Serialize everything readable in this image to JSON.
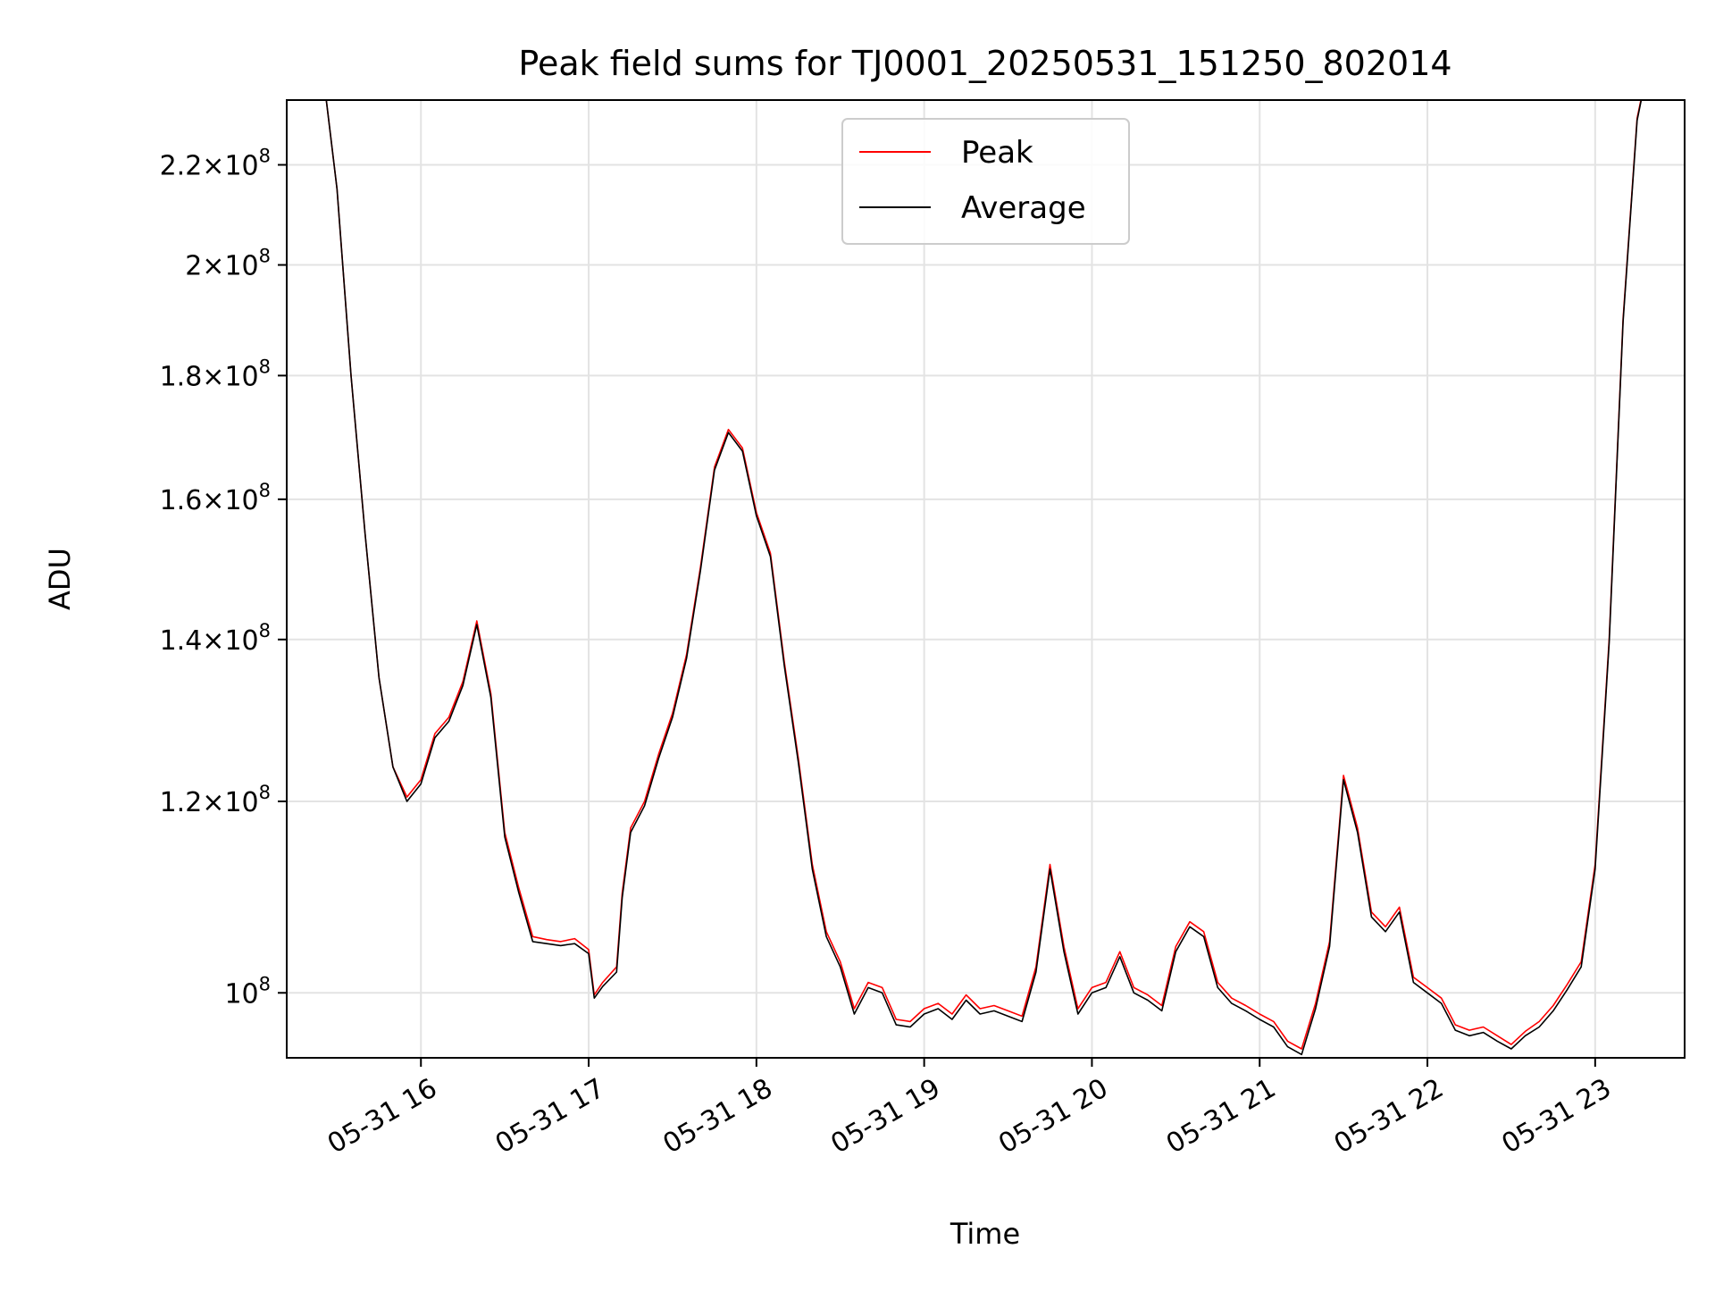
{
  "chart_data": {
    "type": "line",
    "title": "Peak field sums for TJ0001_20250531_151250_802014",
    "xlabel": "Time",
    "ylabel": "ADU",
    "yscale": "log",
    "xlim": [
      "2025-05-31 15:12",
      "2025-05-31 23:32"
    ],
    "ylim": [
      94000000,
      234000000
    ],
    "grid": true,
    "legend_position": "top-center",
    "x_ticks": [
      {
        "value": "2025-05-31 16:00",
        "label": "05-31 16"
      },
      {
        "value": "2025-05-31 17:00",
        "label": "05-31 17"
      },
      {
        "value": "2025-05-31 18:00",
        "label": "05-31 18"
      },
      {
        "value": "2025-05-31 19:00",
        "label": "05-31 19"
      },
      {
        "value": "2025-05-31 20:00",
        "label": "05-31 20"
      },
      {
        "value": "2025-05-31 21:00",
        "label": "05-31 21"
      },
      {
        "value": "2025-05-31 22:00",
        "label": "05-31 22"
      },
      {
        "value": "2025-05-31 23:00",
        "label": "05-31 23"
      }
    ],
    "y_ticks": [
      {
        "value": 100000000,
        "mantissa": "",
        "exponent": "8"
      },
      {
        "value": 120000000,
        "mantissa": "1.2",
        "exponent": "8"
      },
      {
        "value": 140000000,
        "mantissa": "1.4",
        "exponent": "8"
      },
      {
        "value": 160000000,
        "mantissa": "1.6",
        "exponent": "8"
      },
      {
        "value": 180000000,
        "mantissa": "1.8",
        "exponent": "8"
      },
      {
        "value": 200000000,
        "mantissa": "2",
        "exponent": "8"
      },
      {
        "value": 220000000,
        "mantissa": "2.2",
        "exponent": "8"
      }
    ],
    "series": [
      {
        "name": "Peak",
        "color": "#ff0000",
        "points": [
          [
            "2025-05-31 15:25",
            240000000
          ],
          [
            "2025-05-31 15:30",
            215000000
          ],
          [
            "2025-05-31 15:35",
            180000000
          ],
          [
            "2025-05-31 15:40",
            155000000
          ],
          [
            "2025-05-31 15:45",
            135000000
          ],
          [
            "2025-05-31 15:50",
            124000000
          ],
          [
            "2025-05-31 15:55",
            120500000
          ],
          [
            "2025-05-31 16:00",
            122500000
          ],
          [
            "2025-05-31 16:05",
            128000000
          ],
          [
            "2025-05-31 16:10",
            130000000
          ],
          [
            "2025-05-31 16:15",
            134500000
          ],
          [
            "2025-05-31 16:20",
            142500000
          ],
          [
            "2025-05-31 16:25",
            133000000
          ],
          [
            "2025-05-31 16:30",
            116500000
          ],
          [
            "2025-05-31 16:35",
            110500000
          ],
          [
            "2025-05-31 16:40",
            105500000
          ],
          [
            "2025-05-31 16:45",
            105200000
          ],
          [
            "2025-05-31 16:50",
            105000000
          ],
          [
            "2025-05-31 16:55",
            105300000
          ],
          [
            "2025-05-31 17:00",
            104200000
          ],
          [
            "2025-05-31 17:02",
            99800000
          ],
          [
            "2025-05-31 17:05",
            101000000
          ],
          [
            "2025-05-31 17:10",
            102500000
          ],
          [
            "2025-05-31 17:12",
            110000000
          ],
          [
            "2025-05-31 17:15",
            117000000
          ],
          [
            "2025-05-31 17:20",
            120000000
          ],
          [
            "2025-05-31 17:25",
            125500000
          ],
          [
            "2025-05-31 17:30",
            130500000
          ],
          [
            "2025-05-31 17:35",
            138000000
          ],
          [
            "2025-05-31 17:40",
            150000000
          ],
          [
            "2025-05-31 17:45",
            165000000
          ],
          [
            "2025-05-31 17:50",
            171000000
          ],
          [
            "2025-05-31 17:55",
            168000000
          ],
          [
            "2025-05-31 18:00",
            158000000
          ],
          [
            "2025-05-31 18:05",
            152000000
          ],
          [
            "2025-05-31 18:10",
            137000000
          ],
          [
            "2025-05-31 18:15",
            125000000
          ],
          [
            "2025-05-31 18:20",
            113000000
          ],
          [
            "2025-05-31 18:25",
            106000000
          ],
          [
            "2025-05-31 18:30",
            103000000
          ],
          [
            "2025-05-31 18:35",
            98500000
          ],
          [
            "2025-05-31 18:40",
            101000000
          ],
          [
            "2025-05-31 18:45",
            100500000
          ],
          [
            "2025-05-31 18:50",
            97500000
          ],
          [
            "2025-05-31 18:55",
            97300000
          ],
          [
            "2025-05-31 19:00",
            98500000
          ],
          [
            "2025-05-31 19:05",
            99000000
          ],
          [
            "2025-05-31 19:10",
            98000000
          ],
          [
            "2025-05-31 19:15",
            99800000
          ],
          [
            "2025-05-31 19:20",
            98500000
          ],
          [
            "2025-05-31 19:25",
            98800000
          ],
          [
            "2025-05-31 19:30",
            98300000
          ],
          [
            "2025-05-31 19:35",
            97800000
          ],
          [
            "2025-05-31 19:40",
            102500000
          ],
          [
            "2025-05-31 19:45",
            113000000
          ],
          [
            "2025-05-31 19:50",
            104500000
          ],
          [
            "2025-05-31 19:55",
            98500000
          ],
          [
            "2025-05-31 20:00",
            100500000
          ],
          [
            "2025-05-31 20:05",
            101000000
          ],
          [
            "2025-05-31 20:10",
            104000000
          ],
          [
            "2025-05-31 20:15",
            100500000
          ],
          [
            "2025-05-31 20:20",
            99800000
          ],
          [
            "2025-05-31 20:25",
            98800000
          ],
          [
            "2025-05-31 20:30",
            104500000
          ],
          [
            "2025-05-31 20:35",
            107000000
          ],
          [
            "2025-05-31 20:40",
            106000000
          ],
          [
            "2025-05-31 20:45",
            101000000
          ],
          [
            "2025-05-31 20:50",
            99500000
          ],
          [
            "2025-05-31 20:55",
            98800000
          ],
          [
            "2025-05-31 21:00",
            98000000
          ],
          [
            "2025-05-31 21:05",
            97300000
          ],
          [
            "2025-05-31 21:10",
            95500000
          ],
          [
            "2025-05-31 21:15",
            94800000
          ],
          [
            "2025-05-31 21:20",
            99000000
          ],
          [
            "2025-05-31 21:25",
            105000000
          ],
          [
            "2025-05-31 21:30",
            123000000
          ],
          [
            "2025-05-31 21:35",
            117000000
          ],
          [
            "2025-05-31 21:40",
            108000000
          ],
          [
            "2025-05-31 21:45",
            106500000
          ],
          [
            "2025-05-31 21:50",
            108500000
          ],
          [
            "2025-05-31 21:55",
            101500000
          ],
          [
            "2025-05-31 22:00",
            100500000
          ],
          [
            "2025-05-31 22:05",
            99500000
          ],
          [
            "2025-05-31 22:10",
            97000000
          ],
          [
            "2025-05-31 22:15",
            96500000
          ],
          [
            "2025-05-31 22:20",
            96800000
          ],
          [
            "2025-05-31 22:25",
            96000000
          ],
          [
            "2025-05-31 22:30",
            95200000
          ],
          [
            "2025-05-31 22:35",
            96400000
          ],
          [
            "2025-05-31 22:40",
            97300000
          ],
          [
            "2025-05-31 22:45",
            98800000
          ],
          [
            "2025-05-31 22:50",
            100800000
          ],
          [
            "2025-05-31 22:55",
            103000000
          ],
          [
            "2025-05-31 23:00",
            113000000
          ],
          [
            "2025-05-31 23:05",
            140000000
          ],
          [
            "2025-05-31 23:10",
            190000000
          ],
          [
            "2025-05-31 23:15",
            230000000
          ],
          [
            "2025-05-31 23:20",
            245000000
          ]
        ]
      },
      {
        "name": "Average",
        "color": "#000000",
        "points": [
          [
            "2025-05-31 15:25",
            240000000
          ],
          [
            "2025-05-31 15:30",
            215000000
          ],
          [
            "2025-05-31 15:35",
            180000000
          ],
          [
            "2025-05-31 15:40",
            155000000
          ],
          [
            "2025-05-31 15:45",
            135000000
          ],
          [
            "2025-05-31 15:50",
            124000000
          ],
          [
            "2025-05-31 15:55",
            120000000
          ],
          [
            "2025-05-31 16:00",
            122000000
          ],
          [
            "2025-05-31 16:05",
            127500000
          ],
          [
            "2025-05-31 16:10",
            129500000
          ],
          [
            "2025-05-31 16:15",
            134000000
          ],
          [
            "2025-05-31 16:20",
            142000000
          ],
          [
            "2025-05-31 16:25",
            132500000
          ],
          [
            "2025-05-31 16:30",
            116000000
          ],
          [
            "2025-05-31 16:35",
            110000000
          ],
          [
            "2025-05-31 16:40",
            105000000
          ],
          [
            "2025-05-31 16:45",
            104800000
          ],
          [
            "2025-05-31 16:50",
            104600000
          ],
          [
            "2025-05-31 16:55",
            104800000
          ],
          [
            "2025-05-31 17:00",
            103800000
          ],
          [
            "2025-05-31 17:02",
            99500000
          ],
          [
            "2025-05-31 17:05",
            100600000
          ],
          [
            "2025-05-31 17:10",
            102000000
          ],
          [
            "2025-05-31 17:12",
            109500000
          ],
          [
            "2025-05-31 17:15",
            116500000
          ],
          [
            "2025-05-31 17:20",
            119500000
          ],
          [
            "2025-05-31 17:25",
            125000000
          ],
          [
            "2025-05-31 17:30",
            130000000
          ],
          [
            "2025-05-31 17:35",
            137500000
          ],
          [
            "2025-05-31 17:40",
            149500000
          ],
          [
            "2025-05-31 17:45",
            164500000
          ],
          [
            "2025-05-31 17:50",
            170500000
          ],
          [
            "2025-05-31 17:55",
            167500000
          ],
          [
            "2025-05-31 18:00",
            157500000
          ],
          [
            "2025-05-31 18:05",
            151500000
          ],
          [
            "2025-05-31 18:10",
            136500000
          ],
          [
            "2025-05-31 18:15",
            124500000
          ],
          [
            "2025-05-31 18:20",
            112500000
          ],
          [
            "2025-05-31 18:25",
            105500000
          ],
          [
            "2025-05-31 18:30",
            102500000
          ],
          [
            "2025-05-31 18:35",
            98000000
          ],
          [
            "2025-05-31 18:40",
            100500000
          ],
          [
            "2025-05-31 18:45",
            100000000
          ],
          [
            "2025-05-31 18:50",
            97000000
          ],
          [
            "2025-05-31 18:55",
            96800000
          ],
          [
            "2025-05-31 19:00",
            98000000
          ],
          [
            "2025-05-31 19:05",
            98500000
          ],
          [
            "2025-05-31 19:10",
            97500000
          ],
          [
            "2025-05-31 19:15",
            99300000
          ],
          [
            "2025-05-31 19:20",
            98000000
          ],
          [
            "2025-05-31 19:25",
            98300000
          ],
          [
            "2025-05-31 19:30",
            97800000
          ],
          [
            "2025-05-31 19:35",
            97300000
          ],
          [
            "2025-05-31 19:40",
            102000000
          ],
          [
            "2025-05-31 19:45",
            112500000
          ],
          [
            "2025-05-31 19:50",
            104000000
          ],
          [
            "2025-05-31 19:55",
            98000000
          ],
          [
            "2025-05-31 20:00",
            100000000
          ],
          [
            "2025-05-31 20:05",
            100500000
          ],
          [
            "2025-05-31 20:10",
            103500000
          ],
          [
            "2025-05-31 20:15",
            100000000
          ],
          [
            "2025-05-31 20:20",
            99300000
          ],
          [
            "2025-05-31 20:25",
            98300000
          ],
          [
            "2025-05-31 20:30",
            104000000
          ],
          [
            "2025-05-31 20:35",
            106500000
          ],
          [
            "2025-05-31 20:40",
            105500000
          ],
          [
            "2025-05-31 20:45",
            100500000
          ],
          [
            "2025-05-31 20:50",
            99000000
          ],
          [
            "2025-05-31 20:55",
            98300000
          ],
          [
            "2025-05-31 21:00",
            97500000
          ],
          [
            "2025-05-31 21:05",
            96800000
          ],
          [
            "2025-05-31 21:10",
            95000000
          ],
          [
            "2025-05-31 21:15",
            94300000
          ],
          [
            "2025-05-31 21:20",
            98500000
          ],
          [
            "2025-05-31 21:25",
            104500000
          ],
          [
            "2025-05-31 21:30",
            122500000
          ],
          [
            "2025-05-31 21:35",
            116500000
          ],
          [
            "2025-05-31 21:40",
            107500000
          ],
          [
            "2025-05-31 21:45",
            106000000
          ],
          [
            "2025-05-31 21:50",
            108000000
          ],
          [
            "2025-05-31 21:55",
            101000000
          ],
          [
            "2025-05-31 22:00",
            100000000
          ],
          [
            "2025-05-31 22:05",
            99000000
          ],
          [
            "2025-05-31 22:10",
            96500000
          ],
          [
            "2025-05-31 22:15",
            96000000
          ],
          [
            "2025-05-31 22:20",
            96300000
          ],
          [
            "2025-05-31 22:25",
            95500000
          ],
          [
            "2025-05-31 22:30",
            94800000
          ],
          [
            "2025-05-31 22:35",
            96000000
          ],
          [
            "2025-05-31 22:40",
            96800000
          ],
          [
            "2025-05-31 22:45",
            98300000
          ],
          [
            "2025-05-31 22:50",
            100300000
          ],
          [
            "2025-05-31 22:55",
            102500000
          ],
          [
            "2025-05-31 23:00",
            112500000
          ],
          [
            "2025-05-31 23:05",
            139500000
          ],
          [
            "2025-05-31 23:10",
            189500000
          ],
          [
            "2025-05-31 23:15",
            229500000
          ],
          [
            "2025-05-31 23:20",
            245000000
          ]
        ]
      }
    ]
  }
}
